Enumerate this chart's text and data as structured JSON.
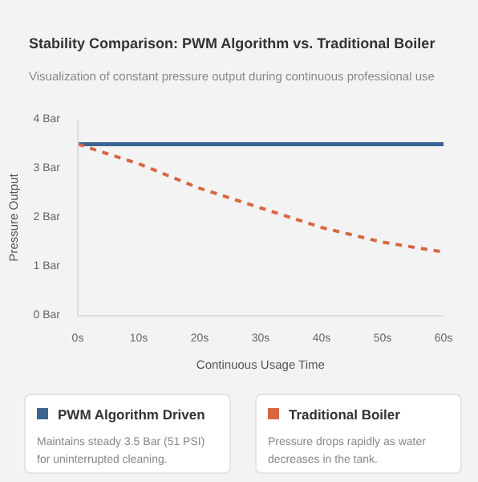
{
  "chart_data": {
    "type": "line",
    "title": "Stability Comparison: PWM Algorithm vs. Traditional Boiler",
    "subtitle": "Visualization of constant pressure output during continuous professional use",
    "xlabel": "Continuous Usage Time",
    "ylabel": "Pressure Output",
    "x": [
      0,
      10,
      20,
      30,
      40,
      50,
      60
    ],
    "xlim": [
      0,
      60
    ],
    "ylim": [
      0,
      4
    ],
    "xticks": [
      {
        "value": 0,
        "label": "0s"
      },
      {
        "value": 10,
        "label": "10s"
      },
      {
        "value": 20,
        "label": "20s"
      },
      {
        "value": 30,
        "label": "30s"
      },
      {
        "value": 40,
        "label": "40s"
      },
      {
        "value": 50,
        "label": "50s"
      },
      {
        "value": 60,
        "label": "60s"
      }
    ],
    "yticks": [
      {
        "value": 0,
        "label": "0 Bar"
      },
      {
        "value": 1,
        "label": "1 Bar"
      },
      {
        "value": 2,
        "label": "2 Bar"
      },
      {
        "value": 3,
        "label": "3 Bar"
      },
      {
        "value": 4,
        "label": "4 Bar"
      }
    ],
    "legend": "bottom",
    "series": [
      {
        "name": "PWM Algorithm Driven",
        "color": "#3a6591",
        "values": [
          3.5,
          3.5,
          3.5,
          3.5,
          3.5,
          3.5,
          3.5
        ],
        "line_style": "solid"
      },
      {
        "name": "Traditional Boiler",
        "color": "#d9663f",
        "values": [
          3.5,
          3.1,
          2.6,
          2.2,
          1.8,
          1.5,
          1.3
        ],
        "line_style": "dashed"
      }
    ],
    "annotations": [
      "Maintains steady 3.5 Bar (51 PSI) for uninterrupted cleaning.",
      "Pressure drops rapidly as water decreases in the tank."
    ]
  }
}
